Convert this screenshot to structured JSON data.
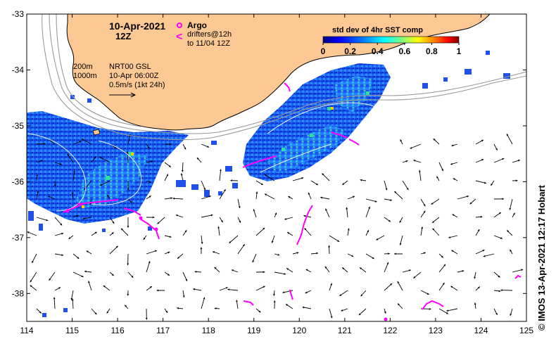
{
  "header": {
    "date": "10-Apr-2021",
    "time": "12Z",
    "argo_label": "Argo",
    "drifter_symbol": "<",
    "drifters_label": "drifters@12h",
    "drifters_to": "to 11/04 12Z"
  },
  "legend": {
    "title": "std dev of 4hr SST comp",
    "ticks": [
      "0",
      "0.2",
      "0.4",
      "0.6",
      "0.8",
      "1"
    ],
    "colors": [
      "#00007f",
      "#0000ff",
      "#007fff",
      "#00ffff",
      "#7fff7f",
      "#ffff00",
      "#ff7f00",
      "#ff0000",
      "#7f0000"
    ]
  },
  "info": {
    "depth_200": "200m",
    "depth_1000": "1000m",
    "model": "NRT00 GSL",
    "model_time": "10-Apr 06:00Z",
    "scale": "0.5m/s (1kt 24h)"
  },
  "axes": {
    "x_ticks": [
      "114",
      "115",
      "116",
      "117",
      "118",
      "119",
      "120",
      "121",
      "122",
      "123",
      "124",
      "125"
    ],
    "y_ticks": [
      "-33",
      "-34",
      "-35",
      "-36",
      "-37",
      "-38"
    ],
    "lon_range": [
      114,
      125
    ],
    "lat_range": [
      -38.5,
      -33
    ]
  },
  "credit": "© IMOS 13-Apr-2021 12:17 Hobart",
  "colors": {
    "land": "#fcc893",
    "drifter": "#ff00ff",
    "contour": "#9a9a9a"
  }
}
